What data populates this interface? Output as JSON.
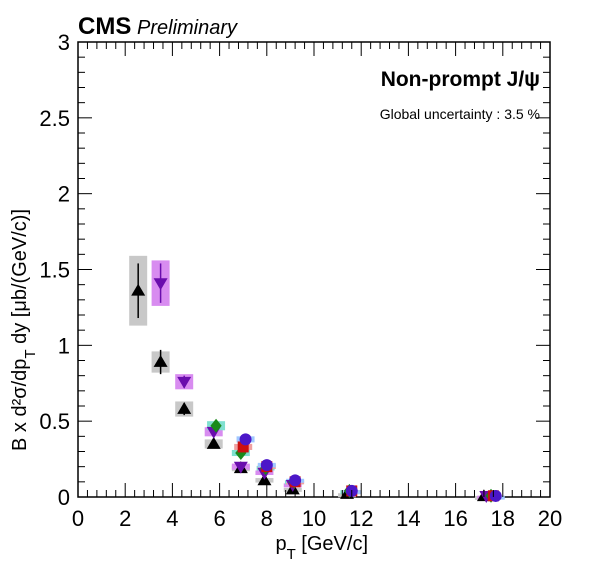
{
  "header": {
    "experiment": "CMS",
    "status": "Preliminary"
  },
  "legend": {
    "title": "Non-prompt J/ψ",
    "global_uncertainty": "Global uncertainty : 3.5 %"
  },
  "chart_data": {
    "type": "scatter",
    "xlabel": "p_T [GeV/c]",
    "ylabel": "B x d²σ/dp_T dy [μb/(GeV/c)]",
    "xlim": [
      0,
      20
    ],
    "ylim": [
      0,
      3
    ],
    "x_ticks": [
      "0",
      "2",
      "4",
      "6",
      "8",
      "10",
      "12",
      "14",
      "16",
      "18",
      "20"
    ],
    "y_ticks": [
      "0",
      "0.5",
      "1",
      "1.5",
      "2",
      "2.5",
      "3"
    ],
    "grid": false,
    "series": [
      {
        "marker": "triangle-up",
        "color": "#000000",
        "box_color": "#c8c8c8",
        "points": [
          {
            "x": 2.55,
            "y": 1.36,
            "err": 0.18,
            "sys": 0.23
          },
          {
            "x": 3.5,
            "y": 0.89,
            "err": 0.08,
            "sys": 0.07
          },
          {
            "x": 4.5,
            "y": 0.58,
            "err": 0.04,
            "sys": 0.05
          },
          {
            "x": 5.75,
            "y": 0.35,
            "err": 0.02,
            "sys": 0.03
          },
          {
            "x": 6.9,
            "y": 0.19,
            "err": 0.01,
            "sys": 0.02
          },
          {
            "x": 7.9,
            "y": 0.11,
            "err": 0.01,
            "sys": 0.015
          },
          {
            "x": 9.1,
            "y": 0.05,
            "err": 0.005,
            "sys": 0.01
          },
          {
            "x": 11.4,
            "y": 0.02,
            "err": 0.003,
            "sys": 0.005
          },
          {
            "x": 17.2,
            "y": 0.005,
            "err": 0.001,
            "sys": 0.002
          }
        ]
      },
      {
        "marker": "triangle-down",
        "color": "#6a0dad",
        "box_color": "#d88cf0",
        "points": [
          {
            "x": 3.5,
            "y": 1.41,
            "err": 0.13,
            "sys": 0.15
          },
          {
            "x": 4.5,
            "y": 0.76,
            "err": 0.04,
            "sys": 0.05
          },
          {
            "x": 5.75,
            "y": 0.43,
            "err": 0.02,
            "sys": 0.03
          },
          {
            "x": 6.9,
            "y": 0.2,
            "err": 0.01,
            "sys": 0.02
          },
          {
            "x": 7.9,
            "y": 0.16,
            "err": 0.01,
            "sys": 0.015
          },
          {
            "x": 9.1,
            "y": 0.08,
            "err": 0.005,
            "sys": 0.01
          },
          {
            "x": 17.3,
            "y": 0.007,
            "err": 0.001,
            "sys": 0.002
          }
        ]
      },
      {
        "marker": "diamond",
        "color": "#1a8a1a",
        "box_color": "#7fe0d0",
        "points": [
          {
            "x": 5.85,
            "y": 0.47,
            "err": 0.02,
            "sys": 0.03
          },
          {
            "x": 6.9,
            "y": 0.29,
            "err": 0.015,
            "sys": 0.02
          },
          {
            "x": 7.95,
            "y": 0.19,
            "err": 0.01,
            "sys": 0.015
          },
          {
            "x": 9.15,
            "y": 0.1,
            "err": 0.006,
            "sys": 0.01
          },
          {
            "x": 11.5,
            "y": 0.04,
            "err": 0.003,
            "sys": 0.005
          },
          {
            "x": 17.5,
            "y": 0.008,
            "err": 0.001,
            "sys": 0.002
          }
        ]
      },
      {
        "marker": "square",
        "color": "#cc1010",
        "box_color": "#f0a0a0",
        "points": [
          {
            "x": 7.0,
            "y": 0.33,
            "err": 0.015,
            "sys": 0.02
          },
          {
            "x": 8.0,
            "y": 0.2,
            "err": 0.01,
            "sys": 0.015
          },
          {
            "x": 9.2,
            "y": 0.1,
            "err": 0.006,
            "sys": 0.01
          },
          {
            "x": 11.6,
            "y": 0.04,
            "err": 0.003,
            "sys": 0.005
          },
          {
            "x": 17.6,
            "y": 0.008,
            "err": 0.001,
            "sys": 0.002
          }
        ]
      },
      {
        "marker": "circle",
        "color": "#4b17c8",
        "box_color": "#a0c8ff",
        "points": [
          {
            "x": 7.1,
            "y": 0.38,
            "err": 0.015,
            "sys": 0.02
          },
          {
            "x": 8.0,
            "y": 0.21,
            "err": 0.01,
            "sys": 0.015
          },
          {
            "x": 9.2,
            "y": 0.11,
            "err": 0.006,
            "sys": 0.01
          },
          {
            "x": 11.6,
            "y": 0.04,
            "err": 0.003,
            "sys": 0.005
          },
          {
            "x": 17.7,
            "y": 0.007,
            "err": 0.001,
            "sys": 0.002
          }
        ]
      }
    ]
  }
}
